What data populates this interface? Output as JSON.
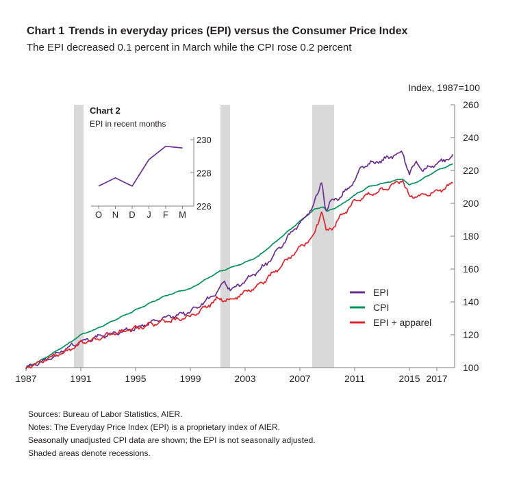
{
  "header": {
    "chart_label": "Chart 1",
    "title": "Trends in everyday prices (EPI) versus the Consumer Price Index",
    "subtitle": "The EPI decreased 0.1 percent in March while the CPI rose 0.2 percent"
  },
  "colors": {
    "epi": "#6a2c91",
    "cpi": "#00925a",
    "epi_apparel": "#e3232a",
    "recession": "#d9d9da",
    "axis": "#7f7f7f"
  },
  "notes": [
    "Sources: Bureau of Labor Statistics, AIER.",
    "Notes: The Everyday Price Index (EPI) is a proprietary index of AIER.",
    "Seasonally unadjusted CPI data are shown; the EPI is not seasonally adjusted.",
    "Shaded areas denote recessions."
  ],
  "chart_data": [
    {
      "type": "line",
      "title": "Trends in everyday prices (EPI) versus the Consumer Price Index",
      "ylabel": "Index, 1987=100",
      "xlim": [
        1987,
        2018.3
      ],
      "ylim": [
        100,
        260
      ],
      "x_ticks": [
        "1987",
        "1991",
        "1995",
        "1999",
        "2003",
        "2007",
        "2011",
        "2015",
        "2017"
      ],
      "y_ticks": [
        "100",
        "120",
        "140",
        "160",
        "180",
        "200",
        "220",
        "240",
        "260"
      ],
      "recessions": [
        [
          1990.5,
          1991.2
        ],
        [
          2001.2,
          2001.9
        ],
        [
          2007.9,
          2009.5
        ]
      ],
      "legend": {
        "position": "right",
        "entries": [
          "EPI",
          "CPI",
          "EPI + apparel"
        ]
      },
      "series": [
        {
          "name": "EPI",
          "x": [
            1987,
            1988,
            1989,
            1990,
            1991,
            1992,
            1993,
            1994,
            1995,
            1996,
            1997,
            1998,
            1999,
            2000,
            2001,
            2001.5,
            2002,
            2003,
            2004,
            2005,
            2006,
            2007,
            2007.5,
            2008.3,
            2008.6,
            2008.9,
            2009.2,
            2009.6,
            2010,
            2011,
            2011.5,
            2012,
            2013,
            2014,
            2014.5,
            2015,
            2015.5,
            2016,
            2017,
            2018.2
          ],
          "values": [
            100,
            103,
            107,
            112,
            116,
            118,
            120,
            122,
            124,
            127,
            130,
            132,
            134,
            140,
            146,
            152,
            147,
            153,
            159,
            167,
            178,
            188,
            192,
            205,
            214,
            195,
            200,
            203,
            204,
            214,
            222,
            224,
            226,
            230,
            231,
            218,
            225,
            220,
            224,
            229
          ]
        },
        {
          "name": "CPI",
          "x": [
            1987,
            1988,
            1989,
            1990,
            1991,
            1992,
            1993,
            1994,
            1995,
            1996,
            1997,
            1998,
            1999,
            2000,
            2001,
            2002,
            2003,
            2004,
            2005,
            2006,
            2007,
            2008,
            2008.7,
            2009,
            2010,
            2011,
            2012,
            2013,
            2014,
            2014.5,
            2015,
            2016,
            2017,
            2018.2
          ],
          "values": [
            100,
            104,
            109,
            114,
            120,
            123,
            127,
            131,
            135,
            139,
            143,
            146,
            148,
            153,
            158,
            161,
            164,
            168,
            175,
            182,
            189,
            196,
            198,
            195,
            199,
            205,
            210,
            212,
            214,
            215,
            211,
            215,
            220,
            224
          ]
        },
        {
          "name": "EPI + apparel",
          "x": [
            1987,
            1988,
            1989,
            1990,
            1991,
            1992,
            1993,
            1994,
            1995,
            1996,
            1997,
            1998,
            1999,
            2000,
            2001,
            2002,
            2003,
            2004,
            2005,
            2006,
            2007,
            2008,
            2008.6,
            2008.9,
            2009.5,
            2010,
            2011,
            2012,
            2013,
            2014,
            2014.5,
            2015,
            2016,
            2017,
            2018.2
          ],
          "values": [
            100,
            103,
            107,
            110,
            115,
            117,
            120,
            122,
            124,
            126,
            128,
            129,
            131,
            136,
            142,
            141,
            146,
            150,
            157,
            165,
            173,
            180,
            196,
            183,
            186,
            192,
            201,
            205,
            208,
            212,
            214,
            204,
            205,
            207,
            212
          ]
        }
      ]
    },
    {
      "type": "line",
      "title": "Chart 2",
      "subtitle": "EPI in recent months",
      "categories": [
        "O",
        "N",
        "D",
        "J",
        "F",
        "M"
      ],
      "ylim": [
        226,
        230
      ],
      "y_ticks": [
        "226",
        "228",
        "230"
      ],
      "series": [
        {
          "name": "EPI",
          "values": [
            227.2,
            227.7,
            227.2,
            228.8,
            229.6,
            229.5
          ]
        }
      ]
    }
  ]
}
